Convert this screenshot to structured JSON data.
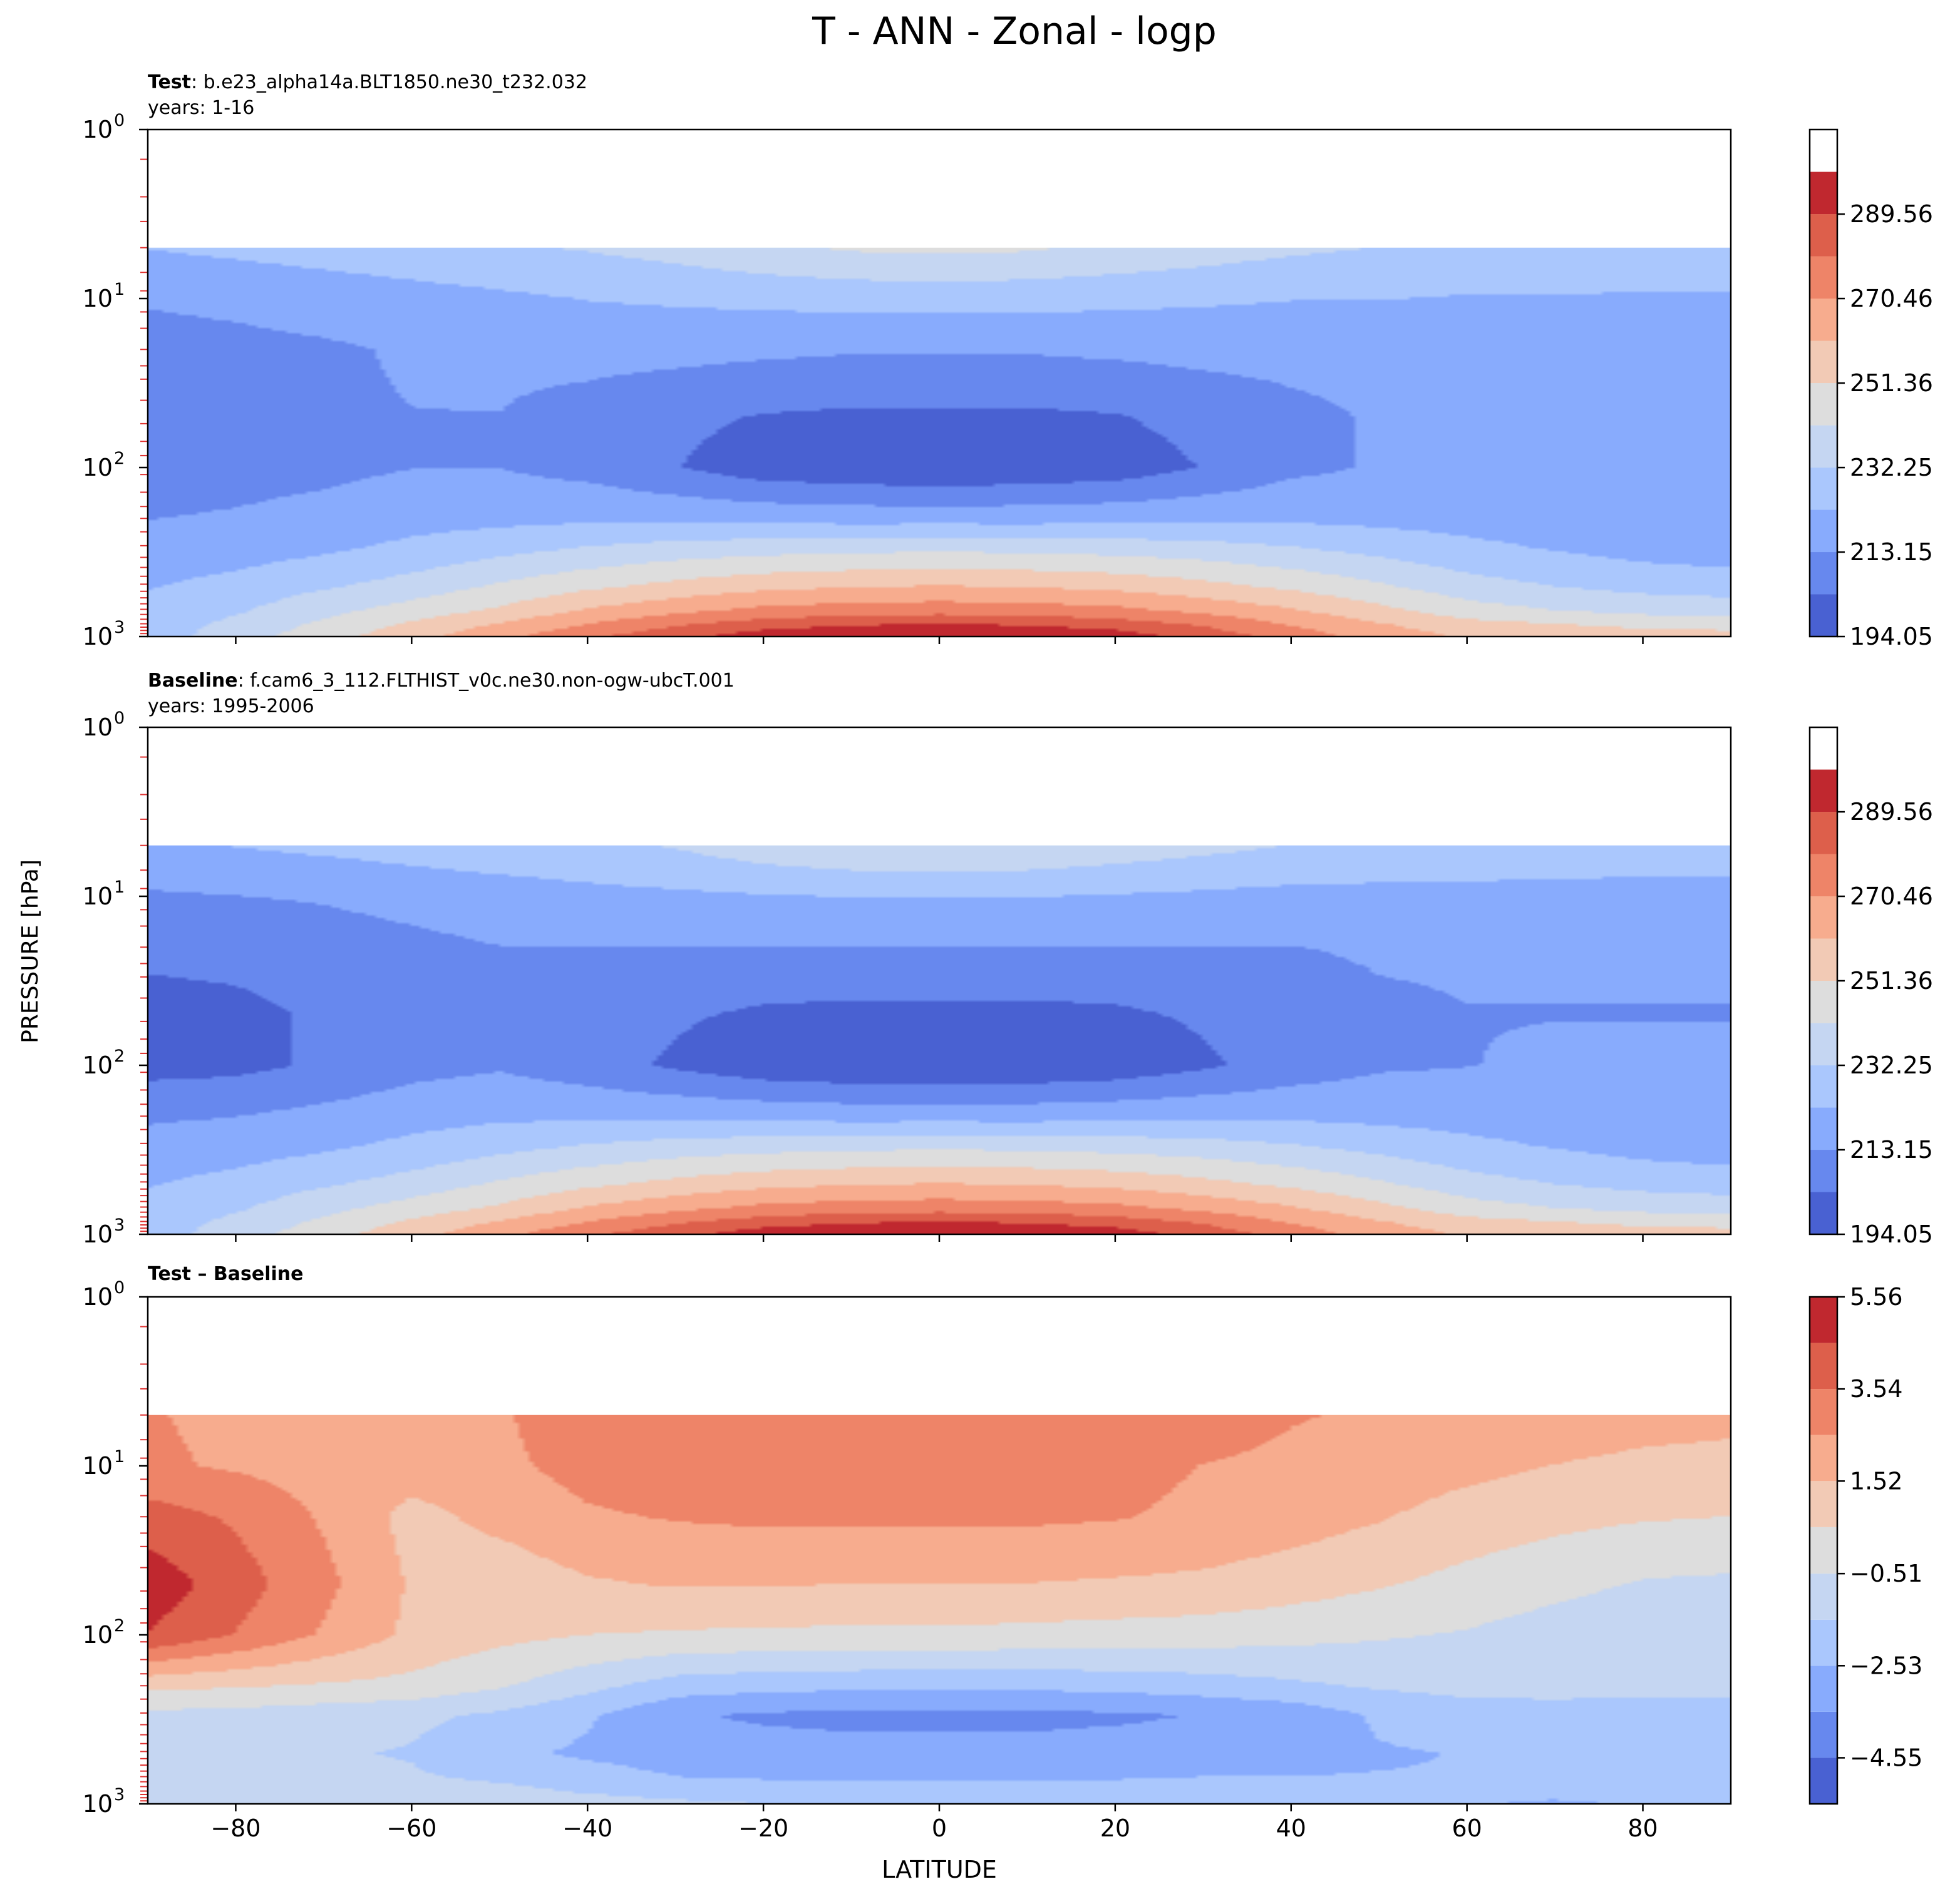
{
  "figure": {
    "title": "T - ANN - Zonal - logp",
    "xlabel": "LATITUDE",
    "ylabel": "PRESSURE [hPa]"
  },
  "chart_data": [
    {
      "type": "contour",
      "name": "test",
      "label_bold": "Test",
      "label_rest": ": b.e23_alpha14a.BLT1850.ne30_t232.032",
      "years": "years: 1-16",
      "xlim": [
        -90,
        90
      ],
      "ylim": [
        1000,
        1
      ],
      "yscale": "log",
      "xticks": [
        -80,
        -60,
        -40,
        -20,
        0,
        20,
        40,
        60,
        80
      ],
      "yticks": [
        {
          "value": 1,
          "label": "10",
          "exp": "0"
        },
        {
          "value": 10,
          "label": "10",
          "exp": "1"
        },
        {
          "value": 100,
          "label": "10",
          "exp": "2"
        },
        {
          "value": 1000,
          "label": "10",
          "exp": "3"
        }
      ],
      "colorbar": {
        "vmin": 194.05,
        "vmax": 308.67,
        "levels": [
          194.05,
          203.6,
          213.15,
          222.7,
          232.25,
          241.8,
          251.36,
          260.91,
          270.46,
          280.01,
          289.56,
          299.11,
          308.67
        ],
        "tick_values": [
          194.05,
          213.15,
          232.25,
          251.36,
          270.46,
          289.56
        ],
        "tick_labels": [
          "194.05",
          "213.15",
          "232.25",
          "251.36",
          "270.46",
          "289.56"
        ],
        "colors": [
          "#4961d2",
          "#6788ee",
          "#88abfd",
          "#aac7fd",
          "#c5d6f2",
          "#dddddd",
          "#f2cab5",
          "#f7ac8e",
          "#ee8468",
          "#dd5f4b",
          "#c0282f"
        ]
      },
      "field": {
        "lat": [
          -90,
          -80,
          -70,
          -60,
          -50,
          -40,
          -30,
          -20,
          -10,
          0,
          10,
          20,
          30,
          40,
          50,
          60,
          70,
          80,
          90
        ],
        "p": [
          5,
          10,
          20,
          50,
          100,
          200,
          300,
          500,
          700,
          850,
          1000
        ],
        "t": [
          [
            223,
            225,
            227,
            229,
            231,
            233,
            236,
            240,
            243,
            244,
            243,
            240,
            237,
            234,
            232,
            230,
            229,
            228,
            228
          ],
          [
            214,
            215,
            217,
            219,
            221,
            223,
            224,
            225,
            226,
            226,
            226,
            225,
            224,
            223,
            223,
            222,
            222,
            222,
            222
          ],
          [
            210,
            211,
            212,
            214,
            215,
            216,
            216,
            215,
            214,
            214,
            214,
            215,
            216,
            216,
            216,
            216,
            216,
            216,
            216
          ],
          [
            210,
            211,
            212,
            213,
            213,
            210,
            206,
            203,
            202,
            202,
            202,
            203,
            207,
            211,
            214,
            215,
            215,
            215,
            215
          ],
          [
            209,
            210,
            211,
            213,
            213,
            210,
            204,
            198,
            196,
            195,
            196,
            198,
            204,
            211,
            214,
            215,
            216,
            216,
            216
          ],
          [
            213,
            214,
            216,
            219,
            220,
            221,
            221,
            220,
            219,
            219,
            219,
            220,
            221,
            221,
            220,
            219,
            218,
            217,
            217
          ],
          [
            216,
            218,
            221,
            225,
            229,
            233,
            236,
            238,
            239,
            240,
            239,
            238,
            236,
            233,
            229,
            225,
            222,
            219,
            217
          ],
          [
            222,
            226,
            231,
            236,
            243,
            249,
            254,
            258,
            260,
            261,
            260,
            258,
            254,
            249,
            243,
            236,
            232,
            229,
            228
          ],
          [
            225,
            231,
            239,
            246,
            253,
            262,
            268,
            273,
            275,
            276,
            275,
            273,
            268,
            262,
            254,
            246,
            242,
            239,
            237
          ],
          [
            226,
            235,
            244,
            253,
            262,
            271,
            279,
            285,
            289,
            290,
            289,
            285,
            279,
            270,
            262,
            255,
            252,
            249,
            248
          ],
          [
            227,
            238,
            247,
            258,
            268,
            278,
            287,
            295,
            299,
            300,
            299,
            295,
            286,
            276,
            266,
            260,
            258,
            256,
            255
          ]
        ]
      }
    },
    {
      "type": "contour",
      "name": "baseline",
      "label_bold": "Baseline",
      "label_rest": ": f.cam6_3_112.FLTHIST_v0c.ne30.non-ogw-ubcT.001",
      "years": "years: 1995-2006",
      "xlim": [
        -90,
        90
      ],
      "ylim": [
        1000,
        1
      ],
      "yscale": "log",
      "xticks": [
        -80,
        -60,
        -40,
        -20,
        0,
        20,
        40,
        60,
        80
      ],
      "yticks": [
        {
          "value": 1,
          "label": "10",
          "exp": "0"
        },
        {
          "value": 10,
          "label": "10",
          "exp": "1"
        },
        {
          "value": 100,
          "label": "10",
          "exp": "2"
        },
        {
          "value": 1000,
          "label": "10",
          "exp": "3"
        }
      ],
      "colorbar": {
        "vmin": 194.05,
        "vmax": 308.67,
        "levels": [
          194.05,
          203.6,
          213.15,
          222.7,
          232.25,
          241.8,
          251.36,
          260.91,
          270.46,
          280.01,
          289.56,
          299.11,
          308.67
        ],
        "tick_values": [
          194.05,
          213.15,
          232.25,
          251.36,
          270.46,
          289.56
        ],
        "tick_labels": [
          "194.05",
          "213.15",
          "232.25",
          "251.36",
          "270.46",
          "289.56"
        ],
        "colors": [
          "#4961d2",
          "#6788ee",
          "#88abfd",
          "#aac7fd",
          "#c5d6f2",
          "#dddddd",
          "#f2cab5",
          "#f7ac8e",
          "#ee8468",
          "#dd5f4b",
          "#c0282f"
        ]
      },
      "field": {
        "lat": [
          -90,
          -80,
          -70,
          -60,
          -50,
          -40,
          -30,
          -20,
          -10,
          0,
          10,
          20,
          30,
          40,
          50,
          60,
          70,
          80,
          90
        ],
        "p": [
          5,
          10,
          20,
          50,
          100,
          200,
          300,
          500,
          700,
          850,
          1000
        ],
        "t": [
          [
            221,
            223,
            225,
            227,
            229,
            230,
            233,
            238,
            241,
            242,
            241,
            238,
            235,
            232,
            230,
            229,
            228,
            227,
            227
          ],
          [
            212,
            213,
            214,
            216,
            218,
            220,
            221,
            222,
            223,
            223,
            223,
            222,
            221,
            220,
            220,
            220,
            220,
            220,
            220
          ],
          [
            206,
            207,
            209,
            211,
            213,
            213,
            213,
            213,
            213,
            213,
            213,
            213,
            213,
            213,
            214,
            214,
            214,
            214,
            214
          ],
          [
            200,
            201,
            205,
            210,
            212,
            209,
            205,
            202,
            201,
            201,
            201,
            202,
            205,
            209,
            212,
            213,
            213,
            213,
            213
          ],
          [
            200,
            201,
            205,
            210,
            212,
            208,
            202,
            197,
            195,
            195,
            195,
            197,
            202,
            208,
            212,
            213,
            214,
            214,
            214
          ],
          [
            212,
            213,
            216,
            219,
            221,
            221,
            221,
            220,
            219,
            219,
            219,
            220,
            221,
            221,
            220,
            219,
            218,
            217,
            217
          ],
          [
            216,
            218,
            221,
            225,
            229,
            233,
            236,
            238,
            239,
            240,
            239,
            238,
            236,
            233,
            229,
            225,
            222,
            219,
            217
          ],
          [
            222,
            226,
            231,
            236,
            243,
            249,
            254,
            258,
            260,
            261,
            260,
            258,
            254,
            249,
            243,
            236,
            232,
            229,
            228
          ],
          [
            225,
            231,
            239,
            246,
            253,
            262,
            268,
            273,
            275,
            276,
            275,
            273,
            268,
            262,
            254,
            246,
            242,
            239,
            237
          ],
          [
            226,
            235,
            244,
            253,
            262,
            271,
            279,
            285,
            289,
            290,
            289,
            285,
            279,
            270,
            262,
            255,
            252,
            249,
            248
          ],
          [
            227,
            238,
            247,
            258,
            268,
            278,
            287,
            295,
            299,
            300,
            299,
            295,
            286,
            276,
            266,
            260,
            258,
            256,
            255
          ]
        ]
      }
    },
    {
      "type": "contour",
      "name": "difference",
      "label_bold": "Test – Baseline",
      "label_rest": "",
      "years": "",
      "xlim": [
        -90,
        90
      ],
      "ylim": [
        1000,
        1
      ],
      "yscale": "log",
      "xticks": [
        -80,
        -60,
        -40,
        -20,
        0,
        20,
        40,
        60,
        80
      ],
      "yticks": [
        {
          "value": 1,
          "label": "10",
          "exp": "0"
        },
        {
          "value": 10,
          "label": "10",
          "exp": "1"
        },
        {
          "value": 100,
          "label": "10",
          "exp": "2"
        },
        {
          "value": 1000,
          "label": "10",
          "exp": "3"
        }
      ],
      "colorbar": {
        "vmin": -5.56,
        "vmax": 5.56,
        "levels": [
          -5.56,
          -4.55,
          -3.54,
          -2.53,
          -1.52,
          -0.51,
          0.51,
          1.52,
          2.53,
          3.54,
          4.55,
          5.56
        ],
        "tick_values": [
          -4.55,
          -2.53,
          -0.51,
          1.52,
          3.54,
          5.56
        ],
        "tick_labels": [
          "−4.55",
          "−2.53",
          "−0.51",
          "1.52",
          "3.54",
          "5.56"
        ],
        "colors": [
          "#4961d2",
          "#6788ee",
          "#88abfd",
          "#aac7fd",
          "#c5d6f2",
          "#dddddd",
          "#f2cab5",
          "#f7ac8e",
          "#ee8468",
          "#dd5f4b",
          "#c0282f"
        ]
      },
      "field": {
        "lat": [
          -90,
          -80,
          -70,
          -60,
          -50,
          -40,
          -30,
          -20,
          -10,
          0,
          10,
          20,
          30,
          40,
          50,
          60,
          70,
          80,
          90
        ],
        "p": [
          5,
          10,
          20,
          50,
          100,
          200,
          300,
          500,
          700,
          850,
          1000
        ],
        "t": [
          [
            2.6,
            2.3,
            2.0,
            2.0,
            2.4,
            3.2,
            3.3,
            3.3,
            3.3,
            3.3,
            3.3,
            3.3,
            3.1,
            2.6,
            2.4,
            2.2,
            2.1,
            1.9,
            1.8
          ],
          [
            2.7,
            2.4,
            2.1,
            2.0,
            2.3,
            2.9,
            3.1,
            3.1,
            3.1,
            3.0,
            3.0,
            2.9,
            2.5,
            2.3,
            2.1,
            1.8,
            1.5,
            1.3,
            1.2
          ],
          [
            4.0,
            3.4,
            2.4,
            1.2,
            1.8,
            2.4,
            2.6,
            2.7,
            2.7,
            2.7,
            2.7,
            2.6,
            2.3,
            2.0,
            1.6,
            1.1,
            0.8,
            0.6,
            0.5
          ],
          [
            5.2,
            4.0,
            2.8,
            1.4,
            0.9,
            1.4,
            1.6,
            1.6,
            1.5,
            1.5,
            1.5,
            1.4,
            1.3,
            1.0,
            0.6,
            0.2,
            -0.2,
            -0.6,
            -0.7
          ],
          [
            4.5,
            3.5,
            2.4,
            1.3,
            0.8,
            0.5,
            0.4,
            0.3,
            0.3,
            0.3,
            0.2,
            0.1,
            0.0,
            -0.2,
            -0.4,
            -0.6,
            -1.0,
            -1.3,
            -1.4
          ],
          [
            0.8,
            0.6,
            0.4,
            0.2,
            -0.4,
            -1.2,
            -2.0,
            -2.2,
            -2.3,
            -2.4,
            -2.3,
            -2.2,
            -2.0,
            -1.7,
            -1.4,
            -1.2,
            -1.2,
            -1.3,
            -1.3
          ],
          [
            -0.8,
            -0.9,
            -1.1,
            -1.3,
            -1.7,
            -2.4,
            -3.4,
            -3.7,
            -3.8,
            -3.8,
            -3.8,
            -3.7,
            -3.5,
            -3.2,
            -2.4,
            -2.0,
            -1.9,
            -1.9,
            -1.9
          ],
          [
            -1.2,
            -1.3,
            -1.4,
            -1.6,
            -2.3,
            -2.7,
            -3.0,
            -3.1,
            -3.2,
            -3.2,
            -3.2,
            -3.1,
            -3.0,
            -2.8,
            -2.6,
            -2.5,
            -2.4,
            -2.3,
            -2.3
          ],
          [
            -1.2,
            -1.3,
            -1.3,
            -1.4,
            -1.7,
            -2.1,
            -2.5,
            -2.6,
            -2.6,
            -2.6,
            -2.6,
            -2.6,
            -2.5,
            -2.5,
            -2.5,
            -2.5,
            -2.5,
            -2.5,
            -2.5
          ],
          [
            -1.0,
            -0.9,
            -0.8,
            -0.8,
            -1.2,
            -1.6,
            -1.9,
            -2.0,
            -2.0,
            -2.1,
            -2.0,
            -2.0,
            -2.0,
            -2.1,
            -2.3,
            -2.4,
            -2.4,
            -2.3,
            -2.3
          ],
          [
            -1.0,
            -0.8,
            -0.6,
            -0.5,
            -0.7,
            -1.0,
            -1.3,
            -1.5,
            -1.7,
            -1.8,
            -1.7,
            -1.6,
            -1.6,
            -1.9,
            -2.3,
            -2.5,
            -2.6,
            -2.5,
            -2.5
          ]
        ]
      }
    }
  ]
}
